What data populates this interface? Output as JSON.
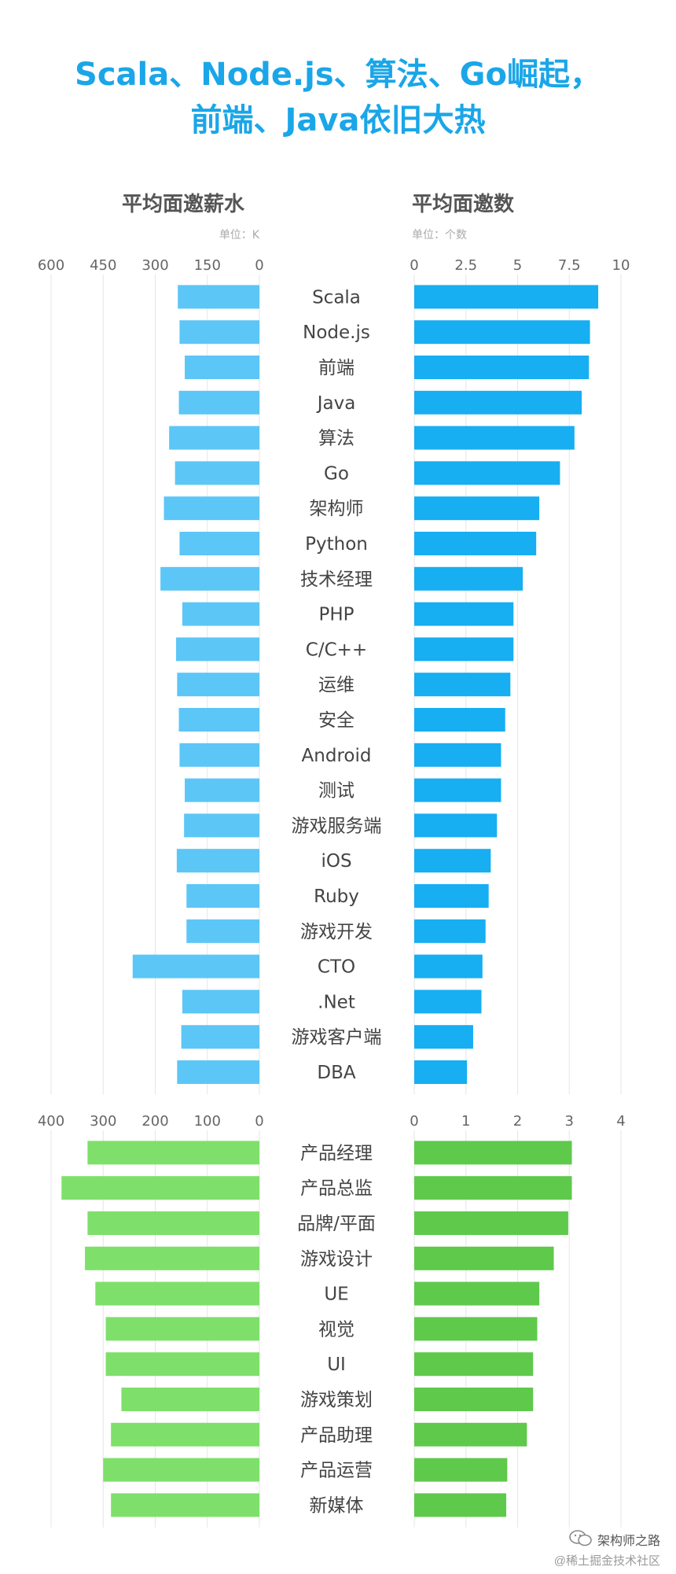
{
  "title_line1": "Scala、Node.js、算法、Go崛起，",
  "title_line2": "前端、Java依旧大热",
  "left_header": "平均面邀薪水",
  "left_unit": "单位：K",
  "right_header": "平均面邀数",
  "right_unit": "单位：个数",
  "watermark": {
    "line1": "架构师之路",
    "line2": "@稀土掘金技术社区",
    "icon": "wechat-icon"
  },
  "colors": {
    "title": "#1aa6e8",
    "tech_salary": "#5cc6f7",
    "tech_count": "#17aef2",
    "product_salary": "#7ee06a",
    "product_count": "#5fc94c"
  },
  "chart_data": [
    {
      "type": "bar",
      "name": "tech",
      "categories": [
        "Scala",
        "Node.js",
        "前端",
        "Java",
        "算法",
        "Go",
        "架构师",
        "Python",
        "技术经理",
        "PHP",
        "C/C++",
        "运维",
        "安全",
        "Android",
        "测试",
        "游戏服务端",
        "iOS",
        "Ruby",
        "游戏开发",
        "CTO",
        ".Net",
        "游戏客户端",
        "DBA"
      ],
      "salary": {
        "values": [
          235,
          230,
          215,
          232,
          260,
          243,
          275,
          230,
          285,
          222,
          240,
          237,
          232,
          230,
          215,
          217,
          238,
          210,
          210,
          365,
          222,
          225,
          237
        ],
        "xlim": [
          600,
          0
        ],
        "ticks": [
          "600",
          "450",
          "300",
          "150",
          "0"
        ]
      },
      "interviews": {
        "values": [
          8.9,
          8.5,
          8.45,
          8.1,
          7.75,
          7.05,
          6.05,
          5.9,
          5.25,
          4.8,
          4.8,
          4.65,
          4.4,
          4.2,
          4.2,
          4.0,
          3.7,
          3.6,
          3.45,
          3.3,
          3.25,
          2.85,
          2.55
        ],
        "xlim": [
          0,
          10
        ],
        "ticks": [
          "0",
          "2.5",
          "5",
          "7.5",
          "10"
        ]
      }
    },
    {
      "type": "bar",
      "name": "product",
      "categories": [
        "产品经理",
        "产品总监",
        "品牌/平面",
        "游戏设计",
        "UE",
        "视觉",
        "UI",
        "游戏策划",
        "产品助理",
        "产品运营",
        "新媒体"
      ],
      "salary": {
        "values": [
          330,
          380,
          330,
          335,
          315,
          295,
          295,
          265,
          285,
          300,
          285
        ],
        "xlim": [
          400,
          0
        ],
        "ticks": [
          "400",
          "300",
          "200",
          "100",
          "0"
        ]
      },
      "interviews": {
        "values": [
          3.05,
          3.05,
          2.98,
          2.7,
          2.42,
          2.38,
          2.3,
          2.3,
          2.18,
          1.8,
          1.78
        ],
        "xlim": [
          0,
          4
        ],
        "ticks": [
          "0",
          "1",
          "2",
          "3",
          "4"
        ]
      }
    }
  ]
}
